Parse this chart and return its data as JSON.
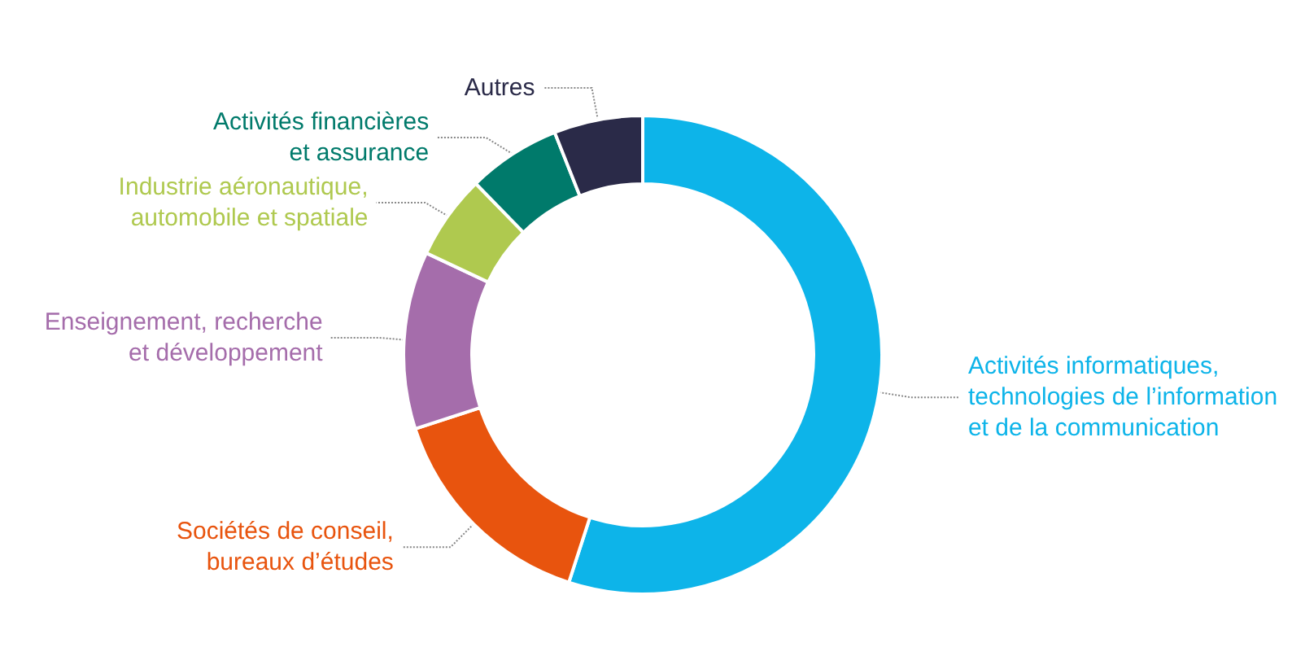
{
  "chart_data": {
    "type": "donut",
    "categories": [
      "Activités informatiques,\ntechnologies de l’information\net de la communication",
      "Sociétés de conseil,\nbureaux d’études",
      "Enseignement, recherche\net développement",
      "Industrie aéronautique,\nautomobile et spatiale",
      "Activités financières\net assurance",
      "Autres"
    ],
    "values": [
      55,
      15,
      12,
      5.7,
      6.3,
      6
    ],
    "colors": [
      "#0db4e9",
      "#e8540e",
      "#a56dab",
      "#afc94f",
      "#007a6b",
      "#2a2a48"
    ],
    "legend": false
  }
}
